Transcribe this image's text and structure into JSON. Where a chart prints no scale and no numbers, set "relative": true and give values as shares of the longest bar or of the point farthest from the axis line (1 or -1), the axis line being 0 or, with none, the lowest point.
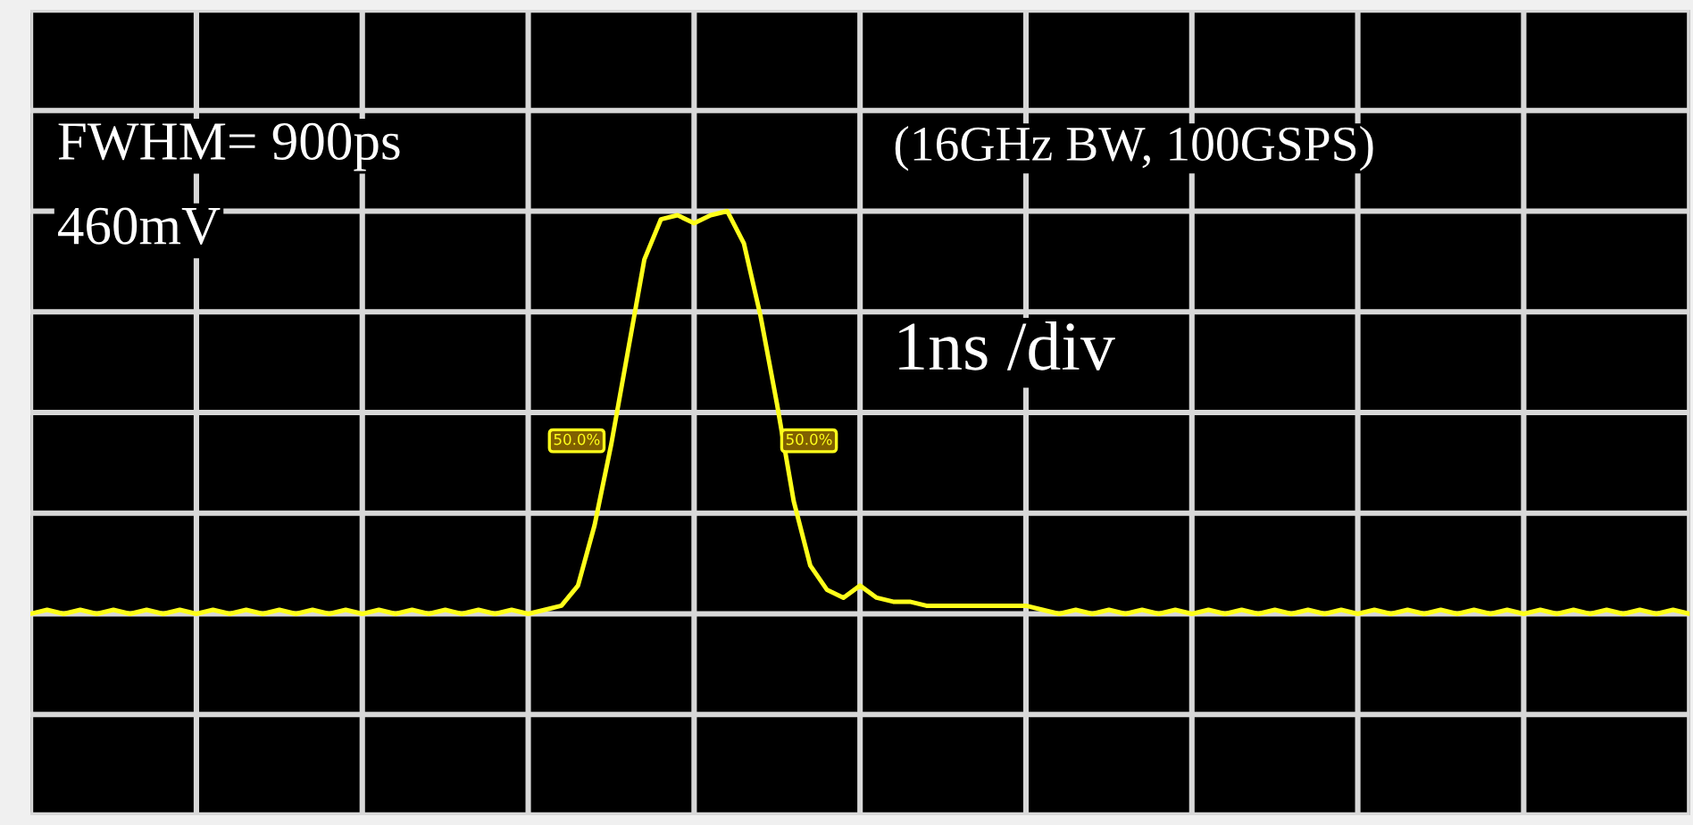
{
  "chart_data": {
    "type": "line",
    "relative": true,
    "categories": [
      null,
      null,
      null,
      null,
      null,
      null,
      null,
      null,
      null,
      null,
      null,
      null,
      null,
      null,
      null,
      null,
      null,
      null,
      null,
      null,
      null,
      null,
      null,
      null,
      null,
      null,
      null,
      null,
      null,
      null,
      null,
      null,
      null,
      null,
      null,
      null,
      null,
      null,
      null,
      null,
      null,
      null,
      null,
      null,
      null,
      null,
      null,
      null,
      null,
      null,
      null,
      null,
      null,
      null,
      null,
      null,
      null,
      null,
      null,
      null,
      null,
      null,
      null,
      null,
      null,
      null,
      null,
      null,
      null,
      null,
      null,
      null,
      null,
      null,
      null,
      null,
      null,
      null,
      null,
      null,
      null,
      null,
      null,
      null,
      null,
      null,
      null,
      null,
      null,
      null,
      null,
      null,
      null,
      null,
      null,
      null,
      null,
      null,
      null,
      null,
      null
    ],
    "series": [
      {
        "color": "#ffff1a",
        "values": [
          0.0,
          0.01,
          0.0,
          0.01,
          0.0,
          0.01,
          0.0,
          0.01,
          0.0,
          0.01,
          0.0,
          0.01,
          0.0,
          0.01,
          0.0,
          0.01,
          0.0,
          0.01,
          0.0,
          0.01,
          0.0,
          0.01,
          0.0,
          0.01,
          0.0,
          0.01,
          0.0,
          0.01,
          0.0,
          0.01,
          0.0,
          0.01,
          0.02,
          0.07,
          0.22,
          0.42,
          0.65,
          0.88,
          0.98,
          0.99,
          0.97,
          0.99,
          1.0,
          0.92,
          0.74,
          0.52,
          0.28,
          0.12,
          0.06,
          0.04,
          0.07,
          0.04,
          0.03,
          0.03,
          0.02,
          0.02,
          0.02,
          0.02,
          0.02,
          0.02,
          0.02,
          0.01,
          0.0,
          0.01,
          0.0,
          0.01,
          0.0,
          0.01,
          0.0,
          0.01,
          0.0,
          0.01,
          0.0,
          0.01,
          0.0,
          0.01,
          0.0,
          0.01,
          0.0,
          0.01,
          0.0,
          0.01,
          0.0,
          0.01,
          0.0,
          0.01,
          0.0,
          0.01,
          0.0,
          0.01,
          0.0,
          0.01,
          0.0,
          0.01,
          0.0,
          0.01,
          0.0,
          0.01,
          0.0,
          0.01,
          0.0
        ]
      }
    ],
    "tick_labels": false,
    "grid": true,
    "marker": "none",
    "line_style": "solid",
    "annotations": [
      "FWHM= 900ps",
      "460mV",
      "(16GHz BW, 100GSPS)",
      "1ns /div",
      "50.0%",
      "50.0%"
    ]
  }
}
